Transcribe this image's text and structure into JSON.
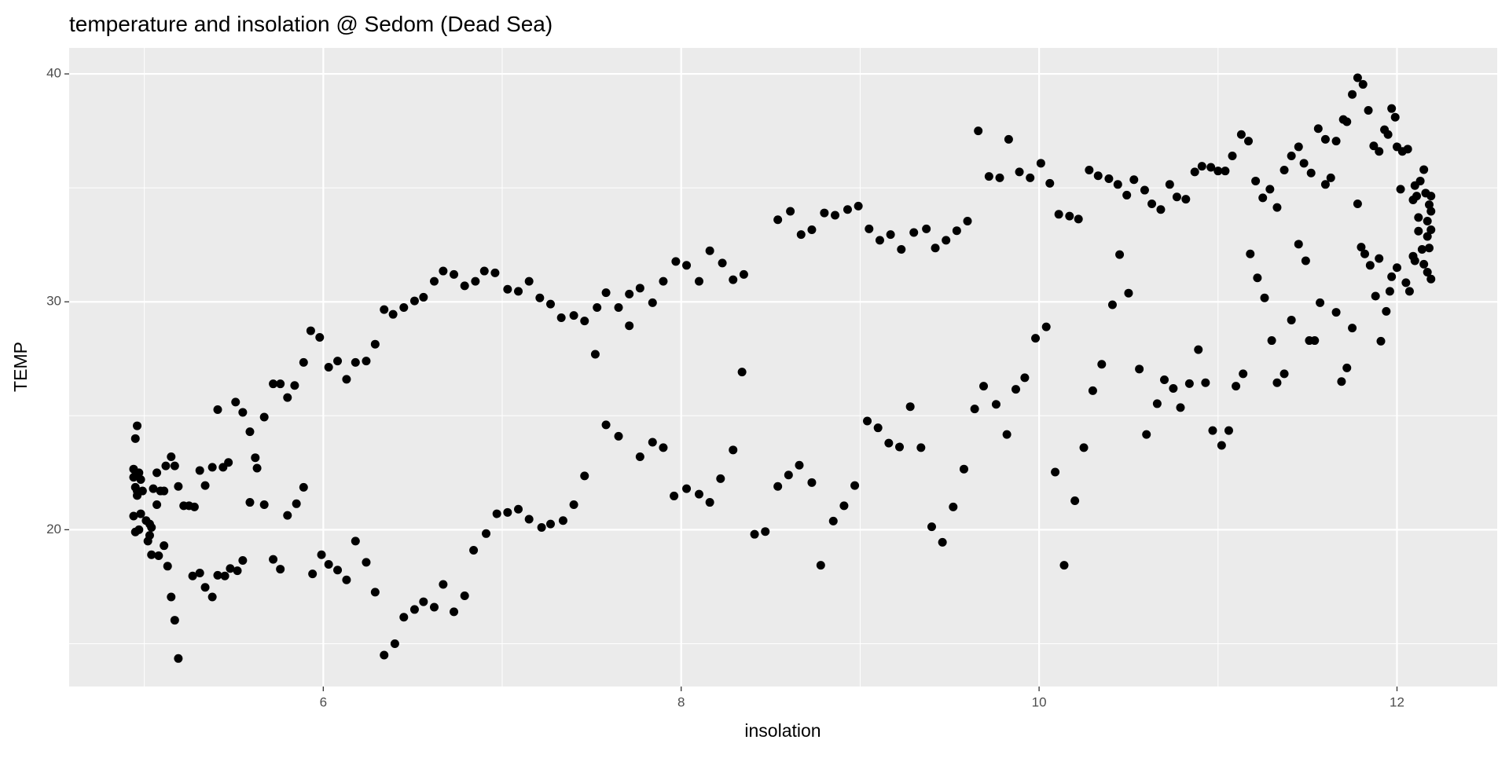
{
  "chart_data": {
    "type": "scatter",
    "title": "temperature and insolation @ Sedom (Dead Sea)",
    "x_label": "insolation",
    "y_label": "TEMP",
    "color": "#000000",
    "panel_color": "#ebebeb",
    "grid": true,
    "xlim": [
      4.58,
      12.56
    ],
    "ylim": [
      13.12,
      41.14
    ],
    "xticks": [
      6,
      8,
      10,
      12
    ],
    "yticks": [
      20,
      30,
      40
    ],
    "minor_xticks": [
      5,
      7,
      9,
      11
    ],
    "minor_yticks": [
      15,
      25,
      35
    ],
    "x": [
      4.96,
      4.95,
      4.94,
      4.97,
      4.94,
      4.98,
      4.95,
      4.96,
      4.99,
      4.96,
      4.94,
      4.98,
      5.01,
      5.03,
      5.04,
      4.95,
      4.97,
      5.03,
      5.02,
      5.04,
      5.08,
      5.11,
      5.13,
      5.05,
      5.07,
      5.07,
      5.09,
      5.11,
      5.12,
      5.15,
      5.17,
      5.19,
      5.22,
      5.25,
      5.28,
      5.15,
      5.17,
      5.19,
      5.27,
      5.31,
      5.34,
      5.38,
      5.31,
      5.34,
      5.38,
      5.41,
      5.44,
      5.47,
      5.41,
      5.45,
      5.48,
      5.52,
      5.51,
      5.55,
      5.55,
      5.59,
      5.59,
      5.62,
      5.63,
      5.67,
      5.67,
      5.72,
      5.72,
      5.76,
      5.76,
      5.8,
      5.8,
      5.84,
      5.85,
      5.89,
      5.89,
      5.93,
      5.94,
      5.98,
      5.99,
      6.03,
      6.03,
      6.08,
      6.08,
      6.13,
      6.13,
      6.18,
      6.18,
      6.24,
      6.24,
      6.29,
      6.29,
      6.34,
      6.34,
      6.4,
      6.39,
      6.45,
      6.45,
      6.51,
      6.51,
      6.56,
      6.56,
      6.62,
      6.62,
      6.67,
      6.67,
      6.73,
      6.73,
      6.79,
      6.79,
      6.84,
      6.85,
      6.9,
      6.91,
      6.96,
      6.97,
      7.03,
      7.03,
      7.09,
      7.09,
      7.15,
      7.15,
      7.21,
      7.22,
      7.27,
      7.27,
      7.33,
      7.34,
      7.4,
      7.4,
      7.46,
      7.46,
      7.52,
      7.53,
      7.58,
      7.58,
      7.65,
      7.65,
      7.71,
      7.71,
      7.77,
      7.77,
      7.84,
      7.84,
      7.9,
      7.9,
      7.97,
      7.96,
      8.03,
      8.03,
      8.1,
      8.1,
      8.16,
      8.16,
      8.23,
      8.22,
      8.29,
      8.29,
      8.35,
      8.34,
      8.41,
      8.47,
      8.54,
      8.54,
      8.61,
      8.6,
      8.67,
      8.66,
      8.73,
      8.73,
      8.8,
      8.78,
      8.86,
      8.85,
      8.93,
      8.91,
      8.99,
      8.97,
      9.05,
      9.04,
      9.11,
      9.1,
      9.17,
      9.16,
      9.23,
      9.22,
      9.3,
      9.28,
      9.37,
      9.34,
      9.42,
      9.4,
      9.48,
      9.46,
      9.54,
      9.52,
      9.6,
      9.58,
      9.66,
      9.64,
      9.72,
      9.69,
      9.78,
      9.76,
      9.83,
      9.82,
      9.89,
      9.87,
      9.95,
      9.92,
      10.01,
      9.98,
      10.06,
      10.04,
      10.11,
      10.09,
      10.17,
      10.14,
      10.22,
      10.2,
      10.28,
      10.25,
      10.33,
      10.3,
      10.39,
      10.35,
      10.44,
      10.41,
      10.49,
      10.45,
      10.53,
      10.5,
      10.59,
      10.56,
      10.63,
      10.6,
      10.68,
      10.66,
      10.73,
      10.7,
      10.77,
      10.75,
      10.82,
      10.79,
      10.87,
      10.84,
      10.91,
      10.89,
      10.96,
      10.93,
      11.0,
      10.97,
      11.04,
      11.02,
      11.08,
      11.06,
      11.13,
      11.1,
      11.17,
      11.14,
      11.21,
      11.18,
      11.25,
      11.22,
      11.29,
      11.26,
      11.33,
      11.3,
      11.37,
      11.33,
      11.41,
      11.37,
      11.45,
      11.41,
      11.48,
      11.45,
      11.52,
      11.49,
      11.56,
      11.51,
      11.6,
      11.54,
      11.63,
      11.57,
      11.66,
      11.6,
      11.7,
      11.66,
      11.72,
      11.69,
      11.75,
      11.72,
      11.78,
      11.75,
      11.81,
      11.78,
      11.84,
      11.8,
      11.87,
      11.82,
      11.9,
      11.85,
      11.93,
      11.88,
      11.95,
      11.9,
      11.97,
      11.91,
      11.99,
      11.94,
      12.0,
      11.96,
      12.02,
      11.97,
      12.03,
      12.0,
      12.05,
      12.06,
      12.07,
      12.09,
      12.09,
      12.1,
      12.1,
      12.11,
      12.12,
      12.12,
      12.13,
      12.14,
      12.15,
      12.15,
      12.16,
      12.17,
      12.17,
      12.17,
      12.18,
      12.18,
      12.19,
      12.19,
      12.19,
      12.19
    ],
    "values": [
      24.56,
      24.0,
      22.66,
      22.5,
      22.3,
      22.2,
      21.86,
      21.7,
      21.7,
      21.5,
      20.6,
      20.7,
      20.4,
      20.25,
      20.1,
      19.9,
      20.0,
      19.75,
      19.5,
      18.9,
      18.86,
      19.3,
      18.4,
      21.8,
      22.5,
      21.1,
      21.7,
      21.7,
      22.8,
      23.2,
      22.8,
      21.9,
      21.05,
      21.05,
      21.0,
      17.05,
      16.03,
      14.35,
      17.97,
      18.1,
      17.47,
      17.05,
      22.6,
      21.94,
      22.74,
      25.27,
      22.74,
      22.95,
      18.0,
      17.97,
      18.3,
      18.2,
      25.6,
      25.15,
      18.65,
      24.3,
      21.2,
      23.16,
      22.7,
      24.94,
      21.1,
      26.4,
      18.7,
      26.4,
      18.27,
      25.8,
      20.63,
      26.33,
      21.14,
      21.86,
      27.34,
      28.73,
      18.06,
      28.44,
      18.9,
      27.13,
      18.48,
      27.4,
      18.23,
      26.6,
      17.8,
      19.5,
      27.34,
      27.4,
      18.57,
      28.14,
      17.26,
      14.5,
      29.66,
      15.0,
      29.45,
      16.16,
      29.75,
      16.5,
      30.04,
      16.84,
      30.2,
      16.6,
      30.9,
      17.6,
      31.35,
      16.4,
      31.2,
      30.7,
      17.1,
      19.1,
      30.9,
      31.35,
      19.83,
      31.27,
      20.7,
      30.55,
      20.76,
      30.46,
      20.9,
      30.9,
      20.46,
      30.17,
      20.1,
      29.9,
      20.25,
      29.3,
      20.4,
      29.4,
      21.1,
      29.16,
      22.36,
      27.7,
      29.75,
      30.4,
      24.6,
      29.75,
      24.1,
      30.34,
      28.95,
      30.6,
      23.2,
      29.96,
      23.84,
      30.9,
      23.6,
      31.77,
      21.48,
      31.6,
      21.8,
      30.9,
      21.56,
      32.24,
      21.2,
      31.7,
      22.24,
      30.97,
      23.5,
      31.2,
      26.92,
      19.8,
      19.92,
      33.6,
      21.9,
      33.97,
      22.4,
      32.95,
      22.83,
      33.16,
      22.07,
      33.9,
      18.44,
      33.8,
      20.38,
      34.05,
      21.05,
      34.2,
      21.94,
      33.2,
      24.77,
      32.7,
      24.47,
      32.95,
      23.8,
      32.3,
      23.63,
      33.04,
      25.4,
      33.2,
      23.6,
      32.36,
      20.13,
      32.7,
      19.45,
      33.12,
      21.0,
      33.54,
      22.66,
      37.5,
      25.3,
      35.5,
      26.3,
      35.44,
      25.5,
      37.13,
      24.18,
      35.7,
      26.16,
      35.44,
      26.67,
      36.08,
      28.4,
      35.2,
      28.9,
      33.84,
      22.53,
      33.76,
      18.44,
      33.63,
      21.27,
      35.78,
      23.6,
      35.53,
      26.1,
      35.4,
      27.26,
      35.15,
      29.87,
      34.68,
      32.07,
      35.36,
      30.38,
      34.9,
      27.05,
      34.3,
      24.18,
      34.05,
      25.53,
      35.15,
      26.58,
      34.6,
      26.2,
      34.5,
      25.36,
      35.7,
      26.41,
      35.95,
      27.9,
      35.9,
      26.45,
      35.74,
      24.35,
      35.74,
      23.7,
      36.4,
      24.35,
      37.34,
      26.3,
      37.05,
      26.84,
      35.3,
      32.1,
      34.56,
      31.05,
      34.94,
      30.17,
      34.14,
      28.3,
      35.78,
      26.45,
      36.4,
      26.84,
      36.8,
      29.2,
      36.08,
      32.53,
      35.65,
      31.8,
      37.6,
      28.3,
      37.13,
      28.3,
      35.44,
      29.96,
      37.05,
      35.15,
      38.0,
      29.54,
      37.9,
      26.5,
      39.1,
      27.1,
      39.83,
      28.85,
      39.54,
      34.3,
      38.4,
      32.4,
      36.84,
      32.1,
      36.6,
      31.6,
      37.55,
      30.25,
      37.34,
      31.9,
      38.48,
      28.27,
      38.1,
      29.58,
      36.8,
      30.46,
      34.94,
      31.1,
      36.6,
      31.5,
      30.84,
      36.7,
      30.46,
      34.47,
      32.0,
      35.1,
      31.8,
      34.64,
      33.1,
      33.7,
      35.3,
      32.3,
      35.8,
      31.65,
      34.77,
      32.87,
      33.54,
      31.3,
      34.26,
      32.36,
      33.97,
      33.16,
      31.0,
      34.64
    ]
  }
}
